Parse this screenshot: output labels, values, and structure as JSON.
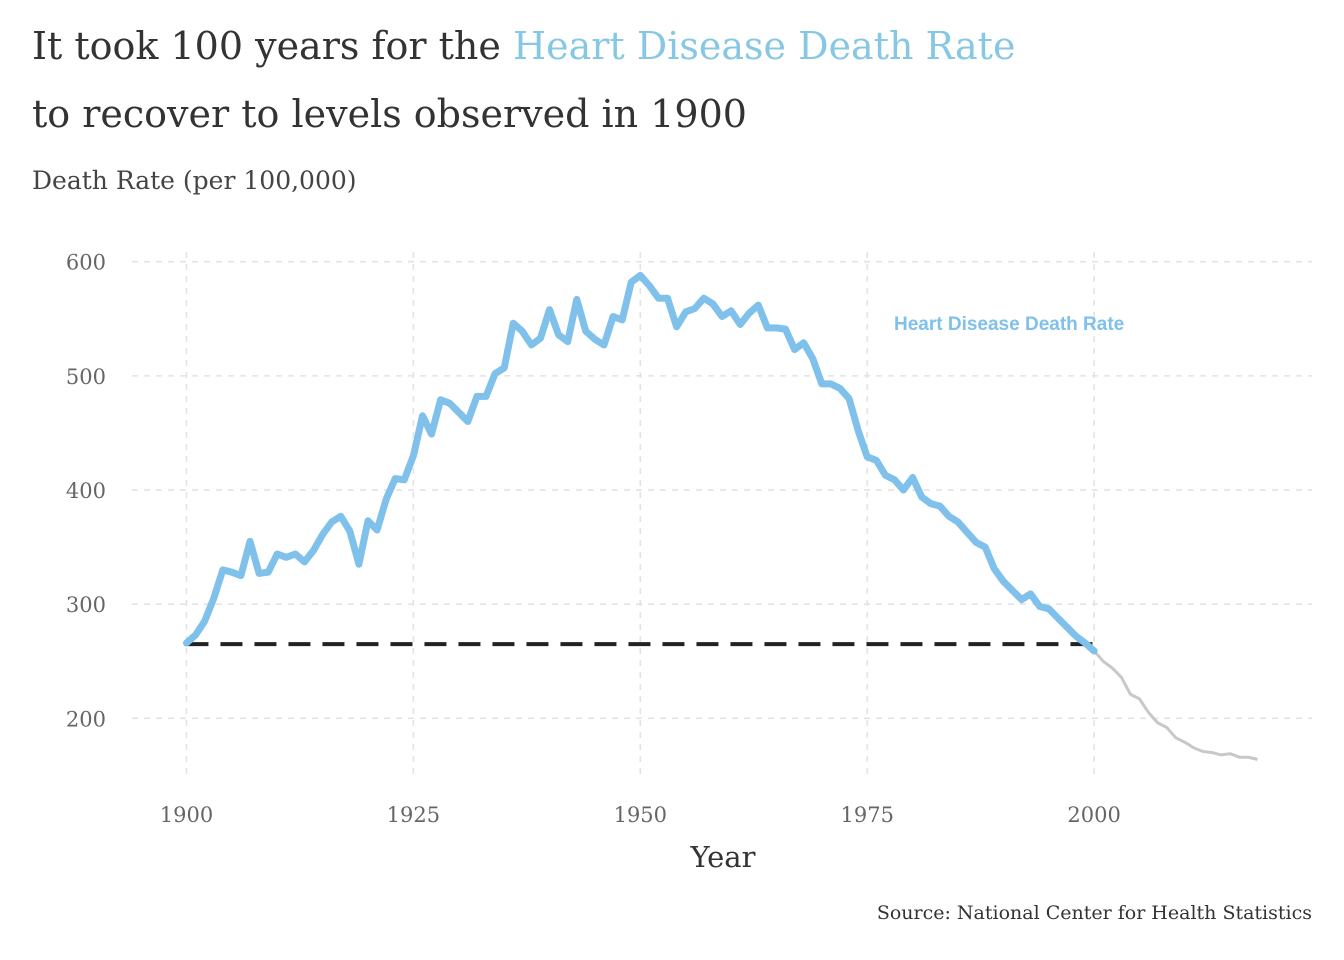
{
  "title": {
    "part1": "It took 100 years for the ",
    "highlight": "Heart Disease Death Rate",
    "line2": "to recover to levels observed in 1900",
    "highlight_color": "#86c8e4"
  },
  "caption": "Source: National Center for Health Statistics",
  "chart_data": {
    "type": "line",
    "ylabel": "Death Rate (per 100,000)",
    "xlabel": "Year",
    "xlim": [
      1894,
      2024
    ],
    "ylim": [
      146,
      612
    ],
    "x_ticks": [
      1900,
      1925,
      1950,
      1975,
      2000
    ],
    "y_ticks": [
      200,
      300,
      400,
      500,
      600
    ],
    "grid": true,
    "series_label": "Heart Disease Death Rate",
    "series_color": "#7fc1ea",
    "projection_color": "#c8c8c8",
    "baseline": {
      "value": 265,
      "x_start": 1900,
      "x_end": 2000,
      "color": "#222222",
      "style": "dashed"
    },
    "years": [
      1900,
      1901,
      1902,
      1903,
      1904,
      1905,
      1906,
      1907,
      1908,
      1909,
      1910,
      1911,
      1912,
      1913,
      1914,
      1915,
      1916,
      1917,
      1918,
      1919,
      1920,
      1921,
      1922,
      1923,
      1924,
      1925,
      1926,
      1927,
      1928,
      1929,
      1930,
      1931,
      1932,
      1933,
      1934,
      1935,
      1936,
      1937,
      1938,
      1939,
      1940,
      1941,
      1942,
      1943,
      1944,
      1945,
      1946,
      1947,
      1948,
      1949,
      1950,
      1951,
      1952,
      1953,
      1954,
      1955,
      1956,
      1957,
      1958,
      1959,
      1960,
      1961,
      1962,
      1963,
      1964,
      1965,
      1966,
      1967,
      1968,
      1969,
      1970,
      1971,
      1972,
      1973,
      1974,
      1975,
      1976,
      1977,
      1978,
      1979,
      1980,
      1981,
      1982,
      1983,
      1984,
      1985,
      1986,
      1987,
      1988,
      1989,
      1990,
      1991,
      1992,
      1993,
      1994,
      1995,
      1996,
      1997,
      1998,
      1999,
      2000
    ],
    "values": [
      266,
      273,
      285,
      305,
      330,
      328,
      325,
      355,
      327,
      328,
      344,
      341,
      344,
      337,
      347,
      361,
      372,
      377,
      364,
      335,
      373,
      365,
      392,
      410,
      409,
      430,
      465,
      449,
      479,
      476,
      468,
      460,
      482,
      482,
      502,
      507,
      546,
      539,
      527,
      533,
      558,
      536,
      530,
      567,
      539,
      532,
      527,
      552,
      549,
      582,
      588,
      579,
      568,
      568,
      543,
      556,
      559,
      568,
      563,
      552,
      557,
      545,
      555,
      562,
      542,
      542,
      541,
      523,
      529,
      515,
      493,
      493,
      489,
      480,
      452,
      429,
      426,
      413,
      409,
      400,
      411,
      394,
      388,
      386,
      377,
      372,
      363,
      354,
      350,
      331,
      320,
      312,
      304,
      309,
      298,
      296,
      288,
      280,
      272,
      266,
      259
    ],
    "projection_years": [
      2000,
      2001,
      2002,
      2003,
      2004,
      2005,
      2006,
      2007,
      2008,
      2009,
      2010,
      2011,
      2012,
      2013,
      2014,
      2015,
      2016,
      2017,
      2018
    ],
    "projection_values": [
      259,
      250,
      244,
      236,
      221,
      217,
      205,
      196,
      192,
      183,
      179,
      174,
      171,
      170,
      168,
      169,
      166,
      166,
      164
    ]
  }
}
